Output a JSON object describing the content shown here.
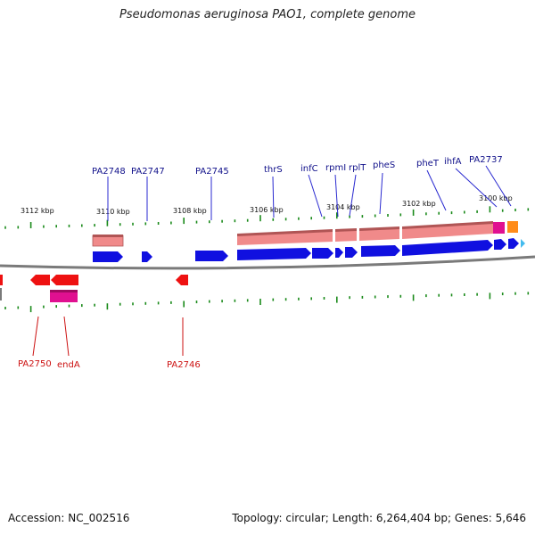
{
  "title": "Pseudomonas aeruginosa PAO1, complete genome",
  "accession": "Accession: NC_002516",
  "summary": "Topology: circular; Length: 6,264,404 bp; Genes: 5,646",
  "colors": {
    "backbone": "#7a7a7a",
    "tick": "#1a8a1a",
    "cds": "#1010e0",
    "cds_reverse": "#ee1111",
    "gene_band": "#f08a8a",
    "gene_band_dark": "#b05555",
    "trna": "#e01090",
    "rrna": "#ff8c1a",
    "other": "#44bbee",
    "label_forward": "#10108a",
    "label_reverse": "#cc1111"
  },
  "kbp_labels": [
    {
      "text": "3112 kbp",
      "pos": 3112
    },
    {
      "text": "3110 kbp",
      "pos": 3110
    },
    {
      "text": "3108 kbp",
      "pos": 3108
    },
    {
      "text": "3106 kbp",
      "pos": 3106
    },
    {
      "text": "3104 kbp",
      "pos": 3104
    },
    {
      "text": "3102 kbp",
      "pos": 3102
    },
    {
      "text": "3100 kbp",
      "pos": 3100
    }
  ],
  "forward_labels": [
    "PA2748",
    "PA2747",
    "PA2745",
    "thrS",
    "infC",
    "rpmI",
    "rplT",
    "pheS",
    "pheT",
    "ihfA",
    "PA2737"
  ],
  "reverse_labels": [
    "PA2750",
    "endA",
    "PA2746"
  ]
}
